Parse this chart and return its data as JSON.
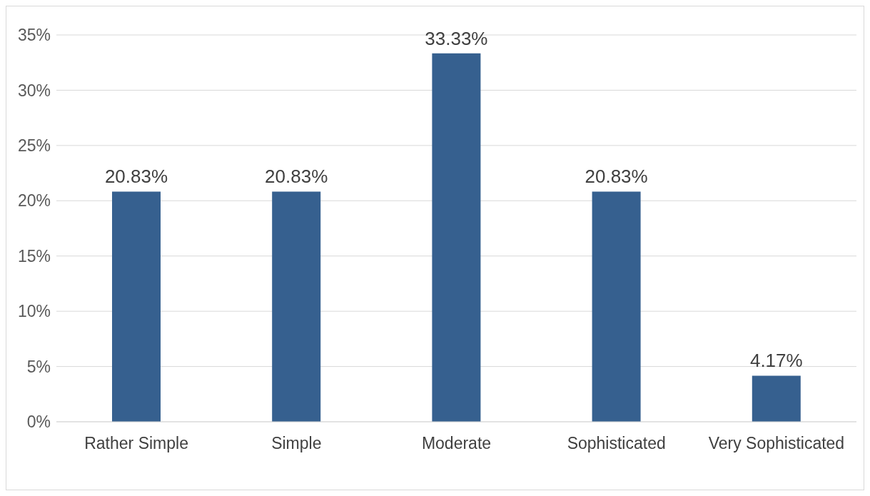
{
  "chart_data": {
    "type": "bar",
    "categories": [
      "Rather Simple",
      "Simple",
      "Moderate",
      "Sophisticated",
      "Very Sophisticated"
    ],
    "values": [
      20.83,
      20.83,
      33.33,
      20.83,
      4.17
    ],
    "color": "#36608f",
    "value_labels": [
      "20.83%",
      "20.83%",
      "33.33%",
      "20.83%",
      "4.17%"
    ],
    "ylim": [
      0,
      35
    ],
    "yticks": [
      {
        "value": 0,
        "label": "0%"
      },
      {
        "value": 5,
        "label": "5%"
      },
      {
        "value": 10,
        "label": "10%"
      },
      {
        "value": 15,
        "label": "15%"
      },
      {
        "value": 20,
        "label": "20%"
      },
      {
        "value": 25,
        "label": "25%"
      },
      {
        "value": 30,
        "label": "30%"
      },
      {
        "value": 35,
        "label": "35%"
      }
    ],
    "grid": "y"
  }
}
